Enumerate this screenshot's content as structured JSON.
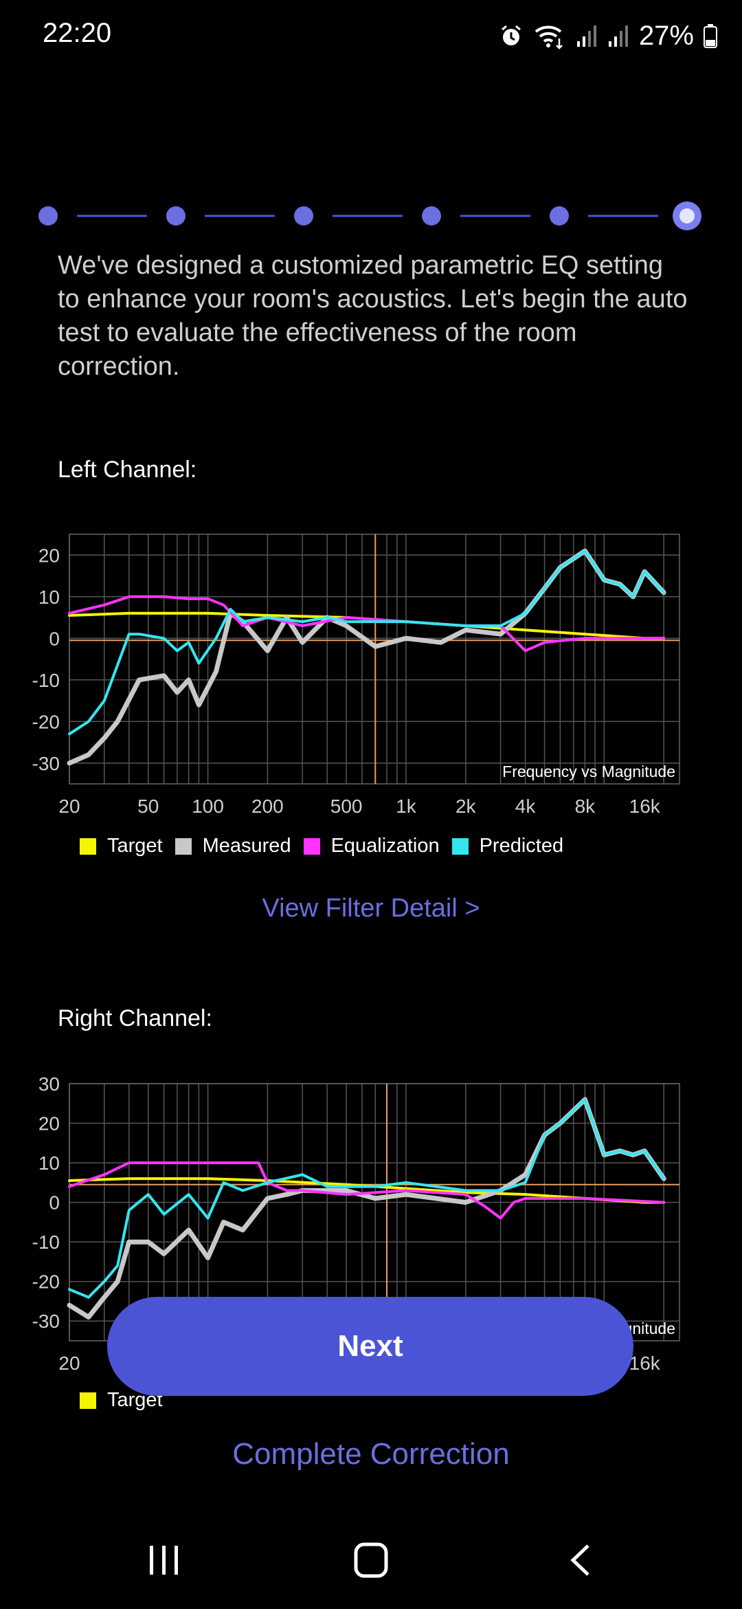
{
  "status_bar": {
    "time": "22:20",
    "battery": "27%",
    "icons": [
      "alarm-icon",
      "wifi-icon",
      "signal-icon",
      "signal-icon",
      "battery-icon"
    ]
  },
  "stepper": {
    "total_steps": 6,
    "current_step": 6
  },
  "intro_text": "We've designed a customized parametric EQ setting to enhance your room's acoustics. Let's begin the auto test to evaluate the effectiveness of the room correction.",
  "left_channel": {
    "title": "Left Channel:",
    "link": "View Filter Detail >"
  },
  "right_channel": {
    "title": "Right Channel:"
  },
  "buttons": {
    "next": "Next",
    "complete": "Complete Correction"
  },
  "nav": [
    "recents-icon",
    "home-icon",
    "back-icon"
  ],
  "colors": {
    "accent": "#4c54d6",
    "link": "#6b6fe0",
    "target": "#f5f500",
    "measured": "#c8c8c8",
    "equalization": "#ff33ff",
    "predicted": "#33e6f0",
    "marker": "#e8a060"
  },
  "chart_data": [
    {
      "type": "line",
      "title": "Frequency vs Magnitude",
      "x_scale": "log",
      "xlim": [
        20,
        24000
      ],
      "ylim": [
        -35,
        25
      ],
      "x_ticks": [
        20,
        50,
        100,
        200,
        500,
        1000,
        2000,
        4000,
        8000,
        16000
      ],
      "x_tick_labels": [
        "20",
        "50",
        "100",
        "200",
        "500",
        "1k",
        "2k",
        "4k",
        "8k",
        "16k"
      ],
      "y_ticks": [
        20,
        10,
        0,
        -10,
        -20,
        -30
      ],
      "y_tick_labels": [
        "20",
        "10",
        "0",
        "-10",
        "-20",
        "-30"
      ],
      "vline_x": 700,
      "hline_y": -0.5,
      "legend": [
        "Target",
        "Measured",
        "Equalization",
        "Predicted"
      ],
      "grid": true,
      "series": [
        {
          "name": "Target",
          "x": [
            20,
            40,
            100,
            200,
            500,
            1000,
            2000,
            4000,
            8000,
            16000,
            20000
          ],
          "y": [
            5.5,
            6,
            6,
            5.5,
            5,
            4,
            3,
            2,
            1,
            0,
            0
          ]
        },
        {
          "name": "Measured",
          "x": [
            20,
            25,
            30,
            35,
            45,
            60,
            70,
            80,
            90,
            110,
            130,
            150,
            200,
            250,
            300,
            400,
            500,
            700,
            1000,
            1500,
            2000,
            3000,
            4000,
            5000,
            6000,
            8000,
            10000,
            12000,
            14000,
            16000,
            20000
          ],
          "y": [
            -30,
            -28,
            -24,
            -20,
            -10,
            -9,
            -13,
            -10,
            -16,
            -8,
            6,
            4,
            -3,
            5,
            -1,
            5,
            3,
            -2,
            0,
            -1,
            2,
            1,
            6,
            12,
            17,
            21,
            14,
            13,
            10,
            16,
            11
          ]
        },
        {
          "name": "Equalization",
          "x": [
            20,
            30,
            40,
            45,
            60,
            80,
            100,
            120,
            150,
            200,
            300,
            500,
            1000,
            2000,
            3000,
            4000,
            5000,
            8000,
            20000
          ],
          "y": [
            6,
            8,
            10,
            10,
            10,
            9.5,
            9.5,
            8,
            3,
            5,
            3,
            5,
            4,
            3,
            3,
            -3,
            -1,
            0,
            0
          ]
        },
        {
          "name": "Predicted",
          "x": [
            20,
            25,
            30,
            40,
            45,
            60,
            70,
            80,
            90,
            110,
            130,
            150,
            200,
            300,
            400,
            500,
            700,
            1000,
            2000,
            3000,
            4000,
            5000,
            6000,
            8000,
            10000,
            12000,
            14000,
            16000,
            20000
          ],
          "y": [
            -23,
            -20,
            -15,
            1,
            1,
            0,
            -3,
            -1,
            -6,
            0,
            7,
            4,
            5,
            4,
            5,
            4,
            4,
            4,
            3,
            3,
            6,
            12,
            17,
            21,
            14,
            13,
            10,
            16,
            11
          ]
        }
      ]
    },
    {
      "type": "line",
      "title": "Frequency vs Magnitude",
      "x_scale": "log",
      "xlim": [
        20,
        24000
      ],
      "ylim": [
        -35,
        30
      ],
      "x_ticks": [
        20,
        16000
      ],
      "x_tick_labels": [
        "20",
        "16k"
      ],
      "y_ticks": [
        30,
        20,
        10,
        0,
        -10,
        -20,
        -30
      ],
      "y_tick_labels": [
        "30",
        "20",
        "10",
        "0",
        "-10",
        "-20",
        "-30"
      ],
      "vline_x": 800,
      "hline_y": 4.5,
      "legend": [
        "Target"
      ],
      "grid": true,
      "series": [
        {
          "name": "Target",
          "x": [
            20,
            40,
            100,
            200,
            500,
            1000,
            2000,
            4000,
            8000,
            16000,
            20000
          ],
          "y": [
            5.5,
            6,
            6,
            5.5,
            4.5,
            3.5,
            2.5,
            2,
            1,
            0,
            0
          ]
        },
        {
          "name": "Measured",
          "x": [
            20,
            25,
            30,
            35,
            40,
            50,
            60,
            80,
            100,
            120,
            150,
            200,
            250,
            300,
            500,
            700,
            1000,
            2000,
            3000,
            4000,
            5000,
            6000,
            8000,
            10000,
            12000,
            14000,
            16000,
            20000
          ],
          "y": [
            -26,
            -29,
            -24,
            -20,
            -10,
            -10,
            -13,
            -7,
            -14,
            -5,
            -7,
            1,
            2,
            3,
            3,
            1,
            2,
            0,
            3,
            7,
            17,
            20,
            26,
            12,
            13,
            12,
            13,
            6
          ]
        },
        {
          "name": "Equalization",
          "x": [
            20,
            30,
            40,
            60,
            100,
            150,
            180,
            200,
            250,
            300,
            500,
            1000,
            2000,
            2500,
            3000,
            3500,
            4000,
            8000,
            20000
          ],
          "y": [
            4,
            7,
            10,
            10,
            10,
            10,
            10,
            5,
            3,
            3,
            2,
            3,
            2,
            -1,
            -4,
            0,
            1,
            1,
            0
          ]
        },
        {
          "name": "Predicted",
          "x": [
            20,
            25,
            30,
            35,
            40,
            50,
            60,
            80,
            100,
            120,
            150,
            200,
            300,
            400,
            500,
            700,
            1000,
            2000,
            3000,
            4000,
            5000,
            6000,
            8000,
            10000,
            12000,
            14000,
            16000,
            20000
          ],
          "y": [
            -22,
            -24,
            -20,
            -16,
            -2,
            2,
            -3,
            2,
            -4,
            5,
            3,
            5,
            7,
            4,
            4,
            4,
            5,
            3,
            3,
            5,
            17,
            20,
            26,
            12,
            13,
            12,
            13,
            6
          ]
        }
      ]
    }
  ]
}
